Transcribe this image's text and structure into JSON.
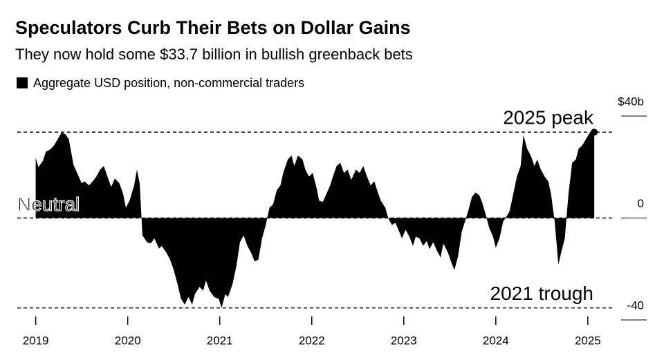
{
  "chart_data": {
    "type": "area",
    "title": "Speculators Curb Their Bets on Dollar Gains",
    "subtitle": "They now hold some $33.7 billion in bullish greenback bets",
    "x": [
      2019.0,
      2019.03,
      2019.08,
      2019.11,
      2019.16,
      2019.2,
      2019.24,
      2019.28,
      2019.32,
      2019.36,
      2019.41,
      2019.45,
      2019.5,
      2019.53,
      2019.58,
      2019.62,
      2019.66,
      2019.7,
      2019.74,
      2019.78,
      2019.82,
      2019.86,
      2019.91,
      2019.95,
      2019.98,
      2020.02,
      2020.07,
      2020.1,
      2020.13,
      2020.16,
      2020.21,
      2020.25,
      2020.29,
      2020.34,
      2020.37,
      2020.42,
      2020.46,
      2020.5,
      2020.54,
      2020.58,
      2020.62,
      2020.66,
      2020.7,
      2020.73,
      2020.78,
      2020.82,
      2020.85,
      2020.89,
      2020.94,
      2020.99,
      2021.02,
      2021.06,
      2021.09,
      2021.14,
      2021.18,
      2021.22,
      2021.26,
      2021.3,
      2021.34,
      2021.38,
      2021.42,
      2021.46,
      2021.5,
      2021.54,
      2021.58,
      2021.62,
      2021.66,
      2021.69,
      2021.74,
      2021.78,
      2021.81,
      2021.85,
      2021.9,
      2021.93,
      2021.97,
      2022.01,
      2022.05,
      2022.08,
      2022.12,
      2022.16,
      2022.2,
      2022.23,
      2022.27,
      2022.31,
      2022.35,
      2022.39,
      2022.43,
      2022.48,
      2022.52,
      2022.56,
      2022.6,
      2022.64,
      2022.68,
      2022.71,
      2022.75,
      2022.8,
      2022.83,
      2022.87,
      2022.91,
      2022.95,
      2022.98,
      2023.02,
      2023.06,
      2023.1,
      2023.13,
      2023.17,
      2023.21,
      2023.25,
      2023.28,
      2023.32,
      2023.36,
      2023.4,
      2023.43,
      2023.48,
      2023.52,
      2023.55,
      2023.59,
      2023.63,
      2023.67,
      2023.7,
      2023.74,
      2023.78,
      2023.82,
      2023.85,
      2023.89,
      2023.93,
      2023.97,
      2024.0,
      2024.04,
      2024.08,
      2024.12,
      2024.15,
      2024.19,
      2024.23,
      2024.27,
      2024.3,
      2024.34,
      2024.38,
      2024.42,
      2024.45,
      2024.49,
      2024.53,
      2024.57,
      2024.6,
      2024.64,
      2024.68,
      2024.72,
      2024.75,
      2024.79,
      2024.83,
      2024.87,
      2024.9,
      2024.94,
      2024.98,
      2025.02,
      2025.07
    ],
    "series": [
      {
        "name": "Aggregate USD position, non-commercial traders",
        "color": "#000000",
        "values": [
          23.6,
          20,
          22.5,
          26,
          27,
          28.5,
          31,
          33.5,
          33,
          31,
          21,
          17.7,
          13.6,
          14.4,
          12.8,
          14.4,
          16.3,
          19,
          20.4,
          16.3,
          12.2,
          15.5,
          13.6,
          9.5,
          4,
          6.8,
          12.8,
          19,
          13.6,
          -6.8,
          -9.5,
          -10,
          -8,
          -12,
          -11,
          -13.6,
          -16.3,
          -20.4,
          -25.8,
          -31.8,
          -34,
          -31,
          -34,
          -29.9,
          -27,
          -28.5,
          -24.5,
          -28.5,
          -31,
          -31.8,
          -35.3,
          -29.9,
          -31,
          -25.8,
          -19,
          -9.5,
          -6.8,
          -10.9,
          -13.6,
          -17.1,
          -16.3,
          -8,
          -2.7,
          4,
          5.4,
          10.9,
          12.8,
          17.7,
          23,
          24.5,
          20.4,
          24.5,
          23,
          19,
          16.3,
          17.7,
          12.2,
          6.8,
          6.3,
          9.5,
          12.8,
          16.3,
          20.4,
          21.7,
          17.7,
          19,
          15,
          19,
          17.7,
          20.4,
          16.3,
          12.8,
          14.4,
          10.9,
          6.8,
          4,
          0,
          -2.7,
          -1.9,
          -5.4,
          -8,
          -4.6,
          -7.3,
          -10.9,
          -7.3,
          -8,
          -10.9,
          -9,
          -12.2,
          -9.5,
          -12.8,
          -15.5,
          -10,
          -13.6,
          -17.7,
          -20.4,
          -15,
          -5.4,
          -0.8,
          2.7,
          8.2,
          10,
          9,
          6.3,
          1.4,
          -4,
          -7.3,
          -11.7,
          -8,
          -1.4,
          0.8,
          2.7,
          9.5,
          16.3,
          20.4,
          32.6,
          27.2,
          24.5,
          20.4,
          23,
          19,
          16.3,
          14.4,
          9.5,
          -1.4,
          -18.2,
          -12.2,
          -8,
          9.5,
          21.7,
          23,
          27.2,
          28.5,
          31,
          33.4,
          33.7
        ]
      }
    ],
    "xlim": [
      2018.8,
      2025.64
    ],
    "xticks": [
      2019,
      2020,
      2021,
      2022,
      2023,
      2024,
      2025
    ],
    "ylim": [
      -40,
      40
    ],
    "yticks": [
      {
        "value": 40,
        "label": "$40b"
      },
      0,
      -40
    ],
    "annotations": [
      {
        "text": "2025 peak",
        "value": 33.7
      },
      {
        "text": "Neutral",
        "value": 0
      },
      {
        "text": "2021 trough",
        "value": -35.3
      }
    ]
  }
}
